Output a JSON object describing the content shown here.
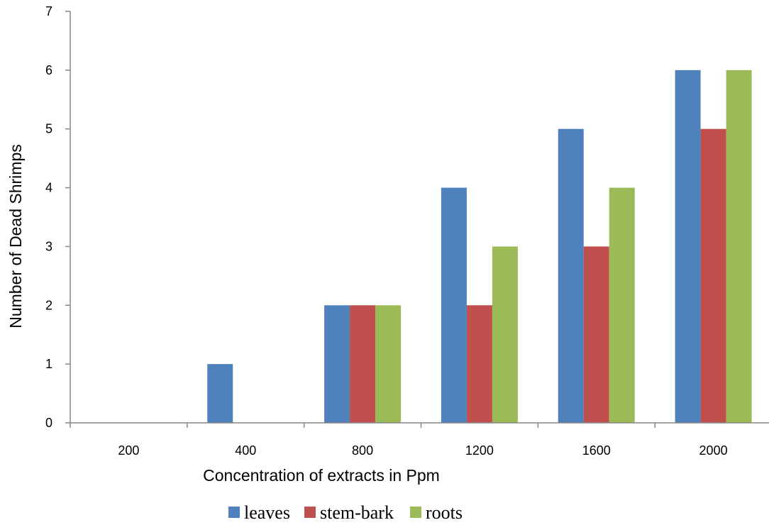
{
  "chart_data": {
    "type": "bar",
    "categories": [
      "200",
      "400",
      "800",
      "1200",
      "1600",
      "2000"
    ],
    "series": [
      {
        "name": "leaves",
        "color": "#4F81BD",
        "values": [
          0,
          1,
          2,
          4,
          5,
          6
        ]
      },
      {
        "name": "stem-bark",
        "color": "#C0504D",
        "values": [
          0,
          0,
          2,
          2,
          3,
          5
        ]
      },
      {
        "name": "roots",
        "color": "#9BBB59",
        "values": [
          0,
          0,
          2,
          3,
          4,
          6
        ]
      }
    ],
    "xlabel": "Concentration of extracts in Ppm",
    "ylabel": "Number of  Dead Shrimps",
    "ylim": [
      0,
      7
    ],
    "yticks": [
      "0",
      "1",
      "2",
      "3",
      "4",
      "5",
      "6",
      "7"
    ],
    "grid": false,
    "legend_position": "bottom"
  }
}
